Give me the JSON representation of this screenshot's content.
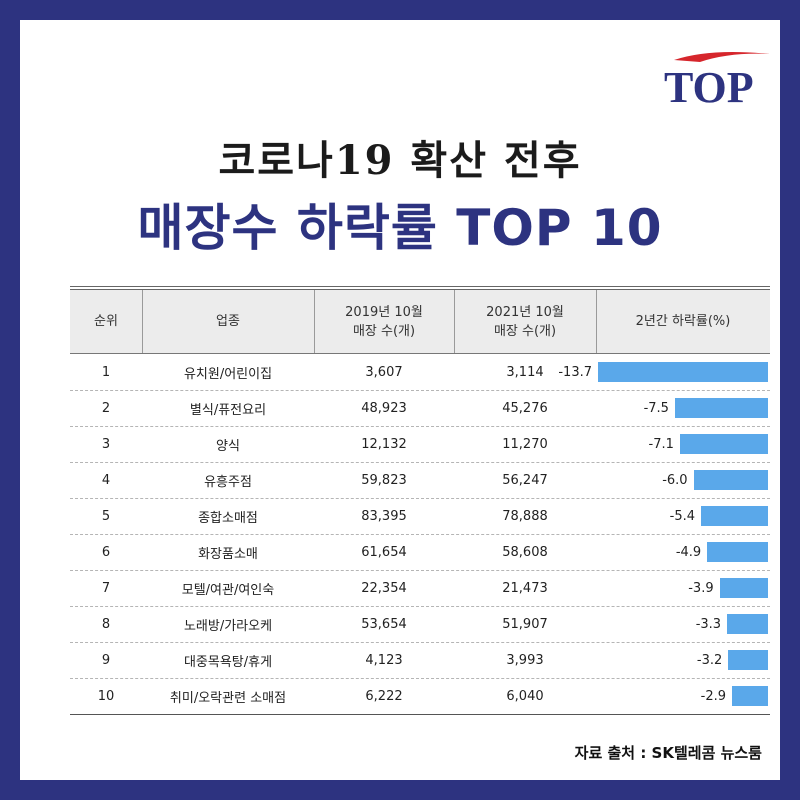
{
  "logo": {
    "text": "TOP",
    "colors": {
      "navy": "#2d3380",
      "red": "#d6262c"
    }
  },
  "title": {
    "line1": "코로나19 확산 전후",
    "line2": "매장수 하락률 TOP 10"
  },
  "table": {
    "headers": {
      "rank": "순위",
      "category": "업종",
      "y2019_line1": "2019년 10월",
      "y2019_line2": "매장 수(개)",
      "y2021_line1": "2021년 10월",
      "y2021_line2": "매장 수(개)",
      "decline": "2년간 하락률(%)"
    },
    "rows": [
      {
        "rank": "1",
        "category": "유치원/어린이집",
        "y2019": "3,607",
        "y2021": "3,114",
        "decline": "-13.7"
      },
      {
        "rank": "2",
        "category": "별식/퓨전요리",
        "y2019": "48,923",
        "y2021": "45,276",
        "decline": "-7.5"
      },
      {
        "rank": "3",
        "category": "양식",
        "y2019": "12,132",
        "y2021": "11,270",
        "decline": "-7.1"
      },
      {
        "rank": "4",
        "category": "유흥주점",
        "y2019": "59,823",
        "y2021": "56,247",
        "decline": "-6.0"
      },
      {
        "rank": "5",
        "category": "종합소매점",
        "y2019": "83,395",
        "y2021": "78,888",
        "decline": "-5.4"
      },
      {
        "rank": "6",
        "category": "화장품소매",
        "y2019": "61,654",
        "y2021": "58,608",
        "decline": "-4.9"
      },
      {
        "rank": "7",
        "category": "모텔/여관/여인숙",
        "y2019": "22,354",
        "y2021": "21,473",
        "decline": "-3.9"
      },
      {
        "rank": "8",
        "category": "노래방/가라오케",
        "y2019": "53,654",
        "y2021": "51,907",
        "decline": "-3.3"
      },
      {
        "rank": "9",
        "category": "대중목욕탕/휴게",
        "y2019": "4,123",
        "y2021": "3,993",
        "decline": "-3.2"
      },
      {
        "rank": "10",
        "category": "취미/오락관련 소매점",
        "y2019": "6,222",
        "y2021": "6,040",
        "decline": "-2.9"
      }
    ]
  },
  "chart_data": {
    "type": "bar",
    "categories": [
      "유치원/어린이집",
      "별식/퓨전요리",
      "양식",
      "유흥주점",
      "종합소매점",
      "화장품소매",
      "모텔/여관/여인숙",
      "노래방/가라오케",
      "대중목욕탕/휴게",
      "취미/오락관련 소매점"
    ],
    "values": [
      -13.7,
      -7.5,
      -7.1,
      -6.0,
      -5.4,
      -4.9,
      -3.9,
      -3.3,
      -3.2,
      -2.9
    ],
    "ylabel": "2년간 하락률(%)",
    "bar_color": "#5aa8ea"
  },
  "source": "자료 출처 : SK텔레콤 뉴스룸"
}
